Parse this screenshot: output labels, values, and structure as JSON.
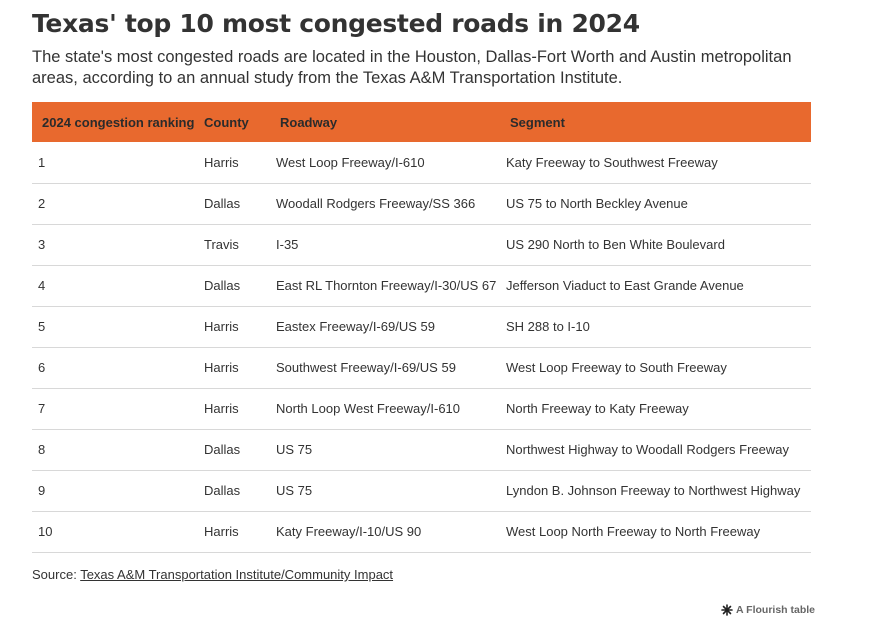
{
  "title": "Texas' top 10 most congested roads in 2024",
  "subtitle": "The state's most congested roads are located in the Houston, Dallas-Fort Worth and Austin metropolitan areas, according to an annual study from the Texas A&M Transportation Institute.",
  "table": {
    "headers": [
      "2024 congestion ranking",
      "County",
      "Roadway",
      "Segment"
    ],
    "rows": [
      [
        "1",
        "Harris",
        "West Loop Freeway/I-610",
        "Katy Freeway to Southwest Freeway"
      ],
      [
        "2",
        "Dallas",
        "Woodall Rodgers Freeway/SS 366",
        "US 75 to North Beckley Avenue"
      ],
      [
        "3",
        "Travis",
        "I-35",
        "US 290 North to Ben White Boulevard"
      ],
      [
        "4",
        "Dallas",
        "East RL Thornton Freeway/I-30/US 67",
        "Jefferson Viaduct to East Grande Avenue"
      ],
      [
        "5",
        "Harris",
        "Eastex Freeway/I-69/US 59",
        "SH 288 to I-10"
      ],
      [
        "6",
        "Harris",
        "Southwest Freeway/I-69/US 59",
        "West Loop Freeway to South Freeway"
      ],
      [
        "7",
        "Harris",
        "North Loop West Freeway/I-610",
        "North Freeway to Katy Freeway"
      ],
      [
        "8",
        "Dallas",
        "US 75",
        "Northwest Highway to Woodall Rodgers Freeway"
      ],
      [
        "9",
        "Dallas",
        "US 75",
        "Lyndon B. Johnson Freeway to Northwest Highway"
      ],
      [
        "10",
        "Harris",
        "Katy Freeway/I-10/US 90",
        "West Loop North Freeway to North Freeway"
      ]
    ]
  },
  "source": {
    "label": "Source: ",
    "link_text": "Texas A&M Transportation Institute/Community Impact"
  },
  "footer": {
    "credit": "A Flourish table",
    "icon": "flourish-logo-icon"
  },
  "colors": {
    "header_bg": "#e8692e",
    "text": "#333333",
    "row_border": "#d8d8d8"
  }
}
